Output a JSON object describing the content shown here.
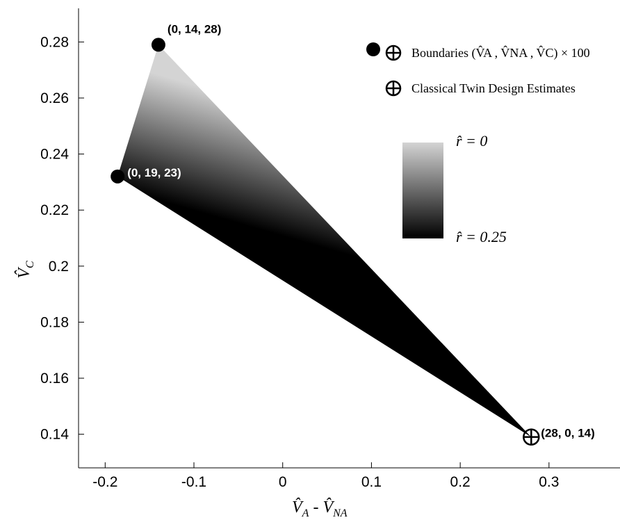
{
  "chart_data": {
    "type": "scatter",
    "xlim": [
      -0.23,
      0.38
    ],
    "ylim": [
      0.128,
      0.292
    ],
    "xticks": [
      {
        "v": -0.2,
        "label": "-0.2"
      },
      {
        "v": -0.1,
        "label": "-0.1"
      },
      {
        "v": 0,
        "label": "0"
      },
      {
        "v": 0.1,
        "label": "0.1"
      },
      {
        "v": 0.2,
        "label": "0.2"
      },
      {
        "v": 0.3,
        "label": "0.3"
      }
    ],
    "yticks": [
      {
        "v": 0.14,
        "label": "0.14"
      },
      {
        "v": 0.16,
        "label": "0.16"
      },
      {
        "v": 0.18,
        "label": "0.18"
      },
      {
        "v": 0.2,
        "label": "0.2"
      },
      {
        "v": 0.22,
        "label": "0.22"
      },
      {
        "v": 0.24,
        "label": "0.24"
      },
      {
        "v": 0.26,
        "label": "0.26"
      },
      {
        "v": 0.28,
        "label": "0.28"
      }
    ],
    "grid": false,
    "xlabel": {
      "main": "V̂",
      "sub1": "A",
      "sep": " - ",
      "sub2": "NA"
    },
    "ylabel": {
      "main": "V̂",
      "sub": "C"
    },
    "region": {
      "vertices": [
        [
          -0.14,
          0.279
        ],
        [
          -0.186,
          0.232
        ],
        [
          0.28,
          0.139
        ]
      ],
      "gradient": "light gray (r̂ = 0) to black (r̂ = 0.25)"
    },
    "points": [
      {
        "x": -0.14,
        "y": 0.279,
        "label": "(0, 14, 28)",
        "marker": "filled-circle",
        "label_color": "#000000"
      },
      {
        "x": -0.186,
        "y": 0.232,
        "label": "(0, 19, 23)",
        "marker": "filled-circle",
        "label_color": "#ffffff"
      },
      {
        "x": 0.28,
        "y": 0.139,
        "label": "(28, 0, 14)",
        "marker": "circled-plus",
        "label_color": "#000000"
      }
    ],
    "legend": {
      "placement": "top-right",
      "items": [
        {
          "markers": [
            "filled-circle",
            "circled-plus"
          ],
          "label": "Boundaries (V̂A , V̂NA , V̂C) × 100"
        },
        {
          "markers": [
            "circled-plus"
          ],
          "label": "Classical Twin Design Estimates"
        }
      ]
    },
    "colorbar": {
      "placement": "right, inside plot",
      "colors": {
        "top": "#d4d4d4",
        "bottom": "#000000"
      },
      "top_label": "r̂ = 0",
      "bottom_label": "r̂ = 0.25"
    }
  }
}
